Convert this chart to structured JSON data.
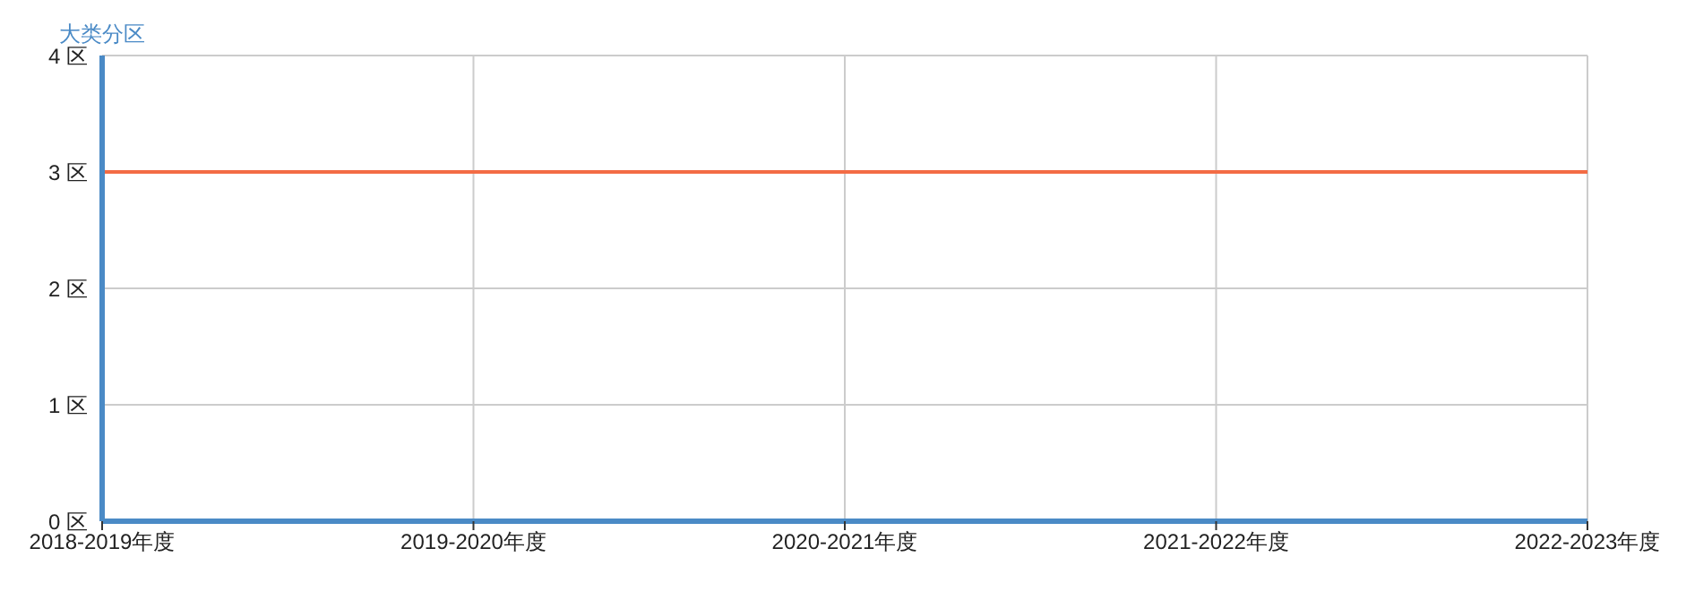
{
  "chart_data": {
    "type": "line",
    "ylabel": "大类分区",
    "categories": [
      "2018-2019年度",
      "2019-2020年度",
      "2020-2021年度",
      "2021-2022年度",
      "2022-2023年度"
    ],
    "series": [
      {
        "color": "#f36c45",
        "values": [
          3,
          3,
          3,
          3,
          3
        ]
      }
    ],
    "ylim": [
      0,
      4
    ],
    "yticks": [
      {
        "value": 0,
        "label": "0 区"
      },
      {
        "value": 1,
        "label": "1 区"
      },
      {
        "value": 2,
        "label": "2 区"
      },
      {
        "value": 3,
        "label": "3 区"
      },
      {
        "value": 4,
        "label": "4 区"
      }
    ],
    "grid": true,
    "line_style": "solid"
  }
}
